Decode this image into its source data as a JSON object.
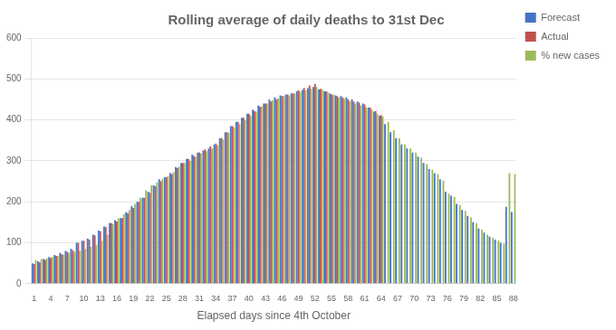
{
  "chart_data": {
    "type": "bar",
    "title": "Rolling average of daily deaths to 31st Dec",
    "x_label": "Elapsed days since 4th October",
    "categories": [
      "1",
      null,
      null,
      "4",
      null,
      null,
      "7",
      null,
      null,
      "10",
      null,
      null,
      "13",
      null,
      null,
      "16",
      null,
      null,
      "19",
      null,
      null,
      "22",
      null,
      null,
      "25",
      null,
      null,
      "28",
      null,
      null,
      "31",
      null,
      null,
      "34",
      null,
      null,
      "37",
      null,
      null,
      "40",
      null,
      null,
      "43",
      null,
      null,
      "46",
      null,
      null,
      "49",
      null,
      null,
      "52",
      null,
      null,
      "55",
      null,
      null,
      "58",
      null,
      null,
      "61",
      null,
      null,
      "64",
      null,
      null,
      "67",
      null,
      null,
      "70",
      null,
      null,
      "73",
      null,
      null,
      "76",
      null,
      null,
      "79",
      null,
      null,
      "82",
      null,
      null,
      "85",
      null,
      null,
      "88"
    ],
    "series": [
      {
        "name": "Forecast",
        "color": "#4472C4",
        "values": [
          50,
          55,
          60,
          65,
          70,
          75,
          80,
          85,
          100,
          105,
          110,
          120,
          130,
          140,
          148,
          155,
          160,
          175,
          190,
          200,
          210,
          225,
          240,
          255,
          260,
          270,
          285,
          295,
          305,
          315,
          320,
          325,
          330,
          340,
          355,
          370,
          385,
          395,
          405,
          415,
          425,
          435,
          440,
          450,
          455,
          460,
          462,
          465,
          470,
          473,
          477,
          480,
          475,
          470,
          465,
          460,
          458,
          455,
          450,
          445,
          440,
          430,
          420,
          410,
          390,
          370,
          355,
          340,
          330,
          320,
          310,
          295,
          280,
          270,
          255,
          225,
          215,
          195,
          180,
          165,
          150,
          135,
          125,
          115,
          108,
          100,
          188,
          175
        ]
      },
      {
        "name": "Actual",
        "color": "#C0504D",
        "values": [
          48,
          52,
          58,
          63,
          68,
          72,
          78,
          82,
          100,
          105,
          108,
          118,
          128,
          138,
          148,
          152,
          160,
          172,
          185,
          200,
          210,
          222,
          238,
          250,
          260,
          268,
          282,
          295,
          305,
          312,
          320,
          328,
          335,
          342,
          356,
          370,
          385,
          395,
          405,
          415,
          422,
          432,
          440,
          445,
          450,
          458,
          462,
          465,
          472,
          478,
          484,
          488,
          476,
          470,
          462,
          458,
          455,
          450,
          445,
          442,
          438,
          430,
          422,
          412,
          0,
          0,
          0,
          0,
          0,
          0,
          0,
          0,
          0,
          0,
          0,
          0,
          0,
          0,
          0,
          0,
          0,
          0,
          0,
          0,
          0,
          0,
          0,
          0
        ]
      },
      {
        "name": "% new cases",
        "color": "#9BBB59",
        "values": [
          58,
          60,
          62,
          65,
          68,
          70,
          75,
          78,
          80,
          85,
          90,
          95,
          105,
          120,
          145,
          160,
          170,
          180,
          195,
          210,
          228,
          240,
          248,
          256,
          262,
          272,
          286,
          295,
          300,
          310,
          318,
          324,
          330,
          338,
          352,
          368,
          382,
          390,
          400,
          410,
          420,
          432,
          440,
          448,
          452,
          458,
          460,
          464,
          468,
          472,
          476,
          480,
          474,
          468,
          462,
          455,
          452,
          445,
          440,
          435,
          430,
          425,
          415,
          408,
          395,
          375,
          355,
          340,
          330,
          320,
          308,
          292,
          278,
          267,
          252,
          220,
          212,
          192,
          178,
          162,
          148,
          132,
          120,
          112,
          105,
          98,
          270,
          268
        ]
      }
    ],
    "ylim": [
      0,
      600
    ],
    "yticks": [
      0,
      100,
      200,
      300,
      400,
      500,
      600
    ],
    "grid": true,
    "legend": "right"
  }
}
